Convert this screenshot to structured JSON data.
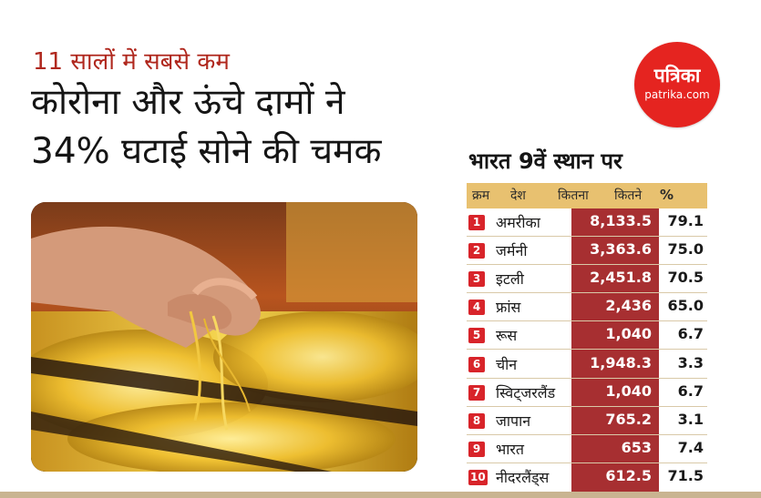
{
  "kicker": "11 सालों में सबसे कम",
  "headline": {
    "line1": "कोरोना और ऊंचे दामों ने",
    "line2": "34% घटाई सोने की चमक"
  },
  "logo": {
    "name": "पत्रिका",
    "url": "patrika.com",
    "color": "#e52420"
  },
  "table": {
    "title": "भारत 9वें स्थान पर",
    "headers": {
      "rank": "क्रम",
      "country": "देश",
      "amount": "कितना",
      "share": "कितने",
      "pct": "%"
    },
    "rows": [
      {
        "rank": "1",
        "country": "अमरीका",
        "amount": "8,133.5",
        "percent": "79.1"
      },
      {
        "rank": "2",
        "country": "जर्मनी",
        "amount": "3,363.6",
        "percent": "75.0"
      },
      {
        "rank": "3",
        "country": "इटली",
        "amount": "2,451.8",
        "percent": "70.5"
      },
      {
        "rank": "4",
        "country": "फ्रांस",
        "amount": "2,436",
        "percent": "65.0"
      },
      {
        "rank": "5",
        "country": "रूस",
        "amount": "1,040",
        "percent": "6.7"
      },
      {
        "rank": "6",
        "country": "चीन",
        "amount": "1,948.3",
        "percent": "3.3"
      },
      {
        "rank": "7",
        "country": "स्विट्जरलैंड",
        "amount": "1,040",
        "percent": "6.7"
      },
      {
        "rank": "8",
        "country": "जापान",
        "amount": "765.2",
        "percent": "3.1"
      },
      {
        "rank": "9",
        "country": "भारत",
        "amount": "653",
        "percent": "7.4"
      },
      {
        "rank": "10",
        "country": "नीदरलैंड्स",
        "amount": "612.5",
        "percent": "71.5"
      }
    ]
  },
  "colors": {
    "accent_red": "#b0281e",
    "amount_column": "#a72f31",
    "header_gold": "#e8c170",
    "rank_badge": "#d8242a"
  }
}
